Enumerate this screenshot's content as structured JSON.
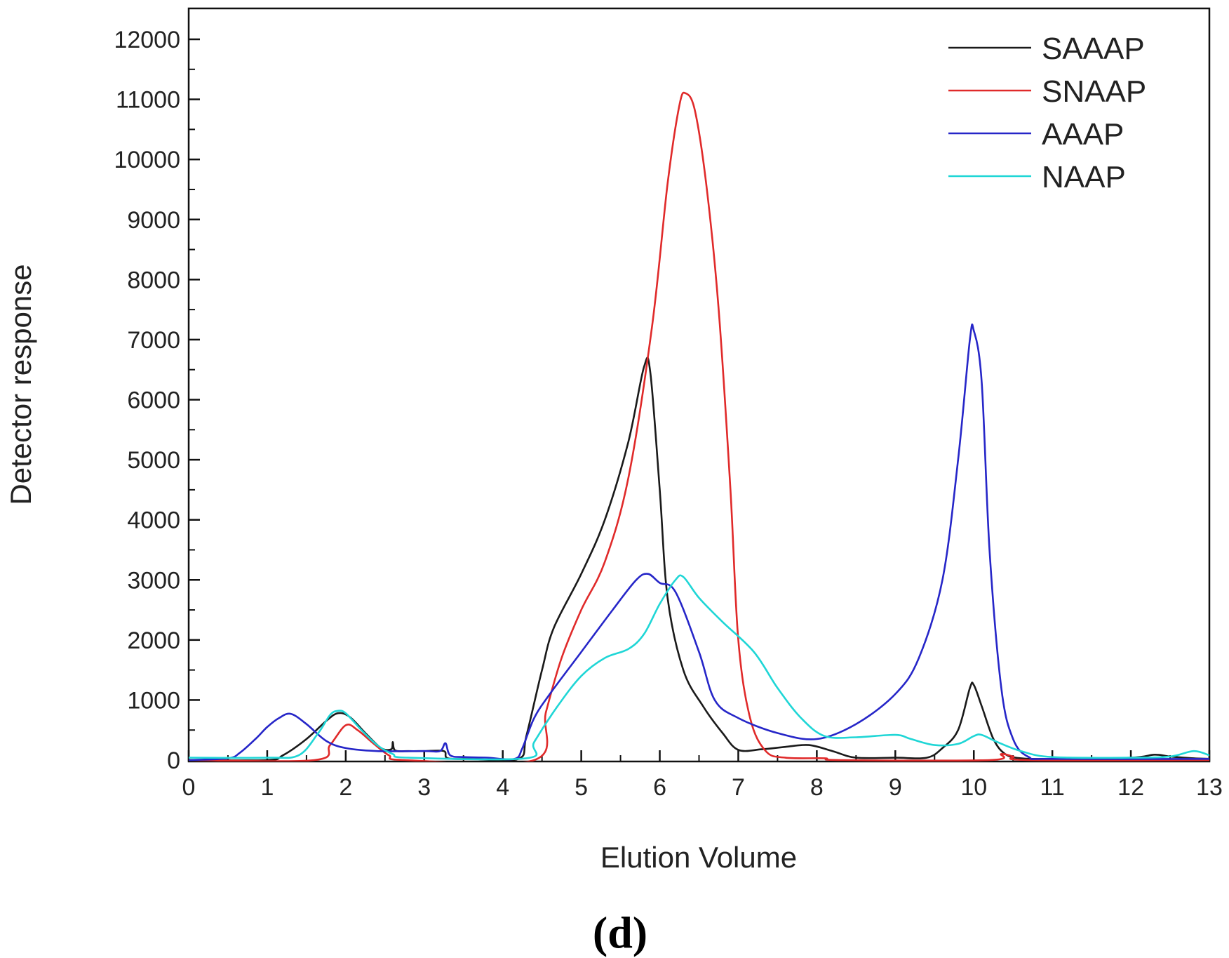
{
  "chart_data": {
    "type": "line",
    "title": "",
    "panel_label": "(d)",
    "xlabel": "Elution Volume",
    "ylabel": "Detector response",
    "xlim": [
      0,
      13
    ],
    "ylim": [
      0,
      12500
    ],
    "xticks": [
      0,
      1,
      2,
      3,
      4,
      5,
      6,
      7,
      8,
      9,
      10,
      11,
      12,
      13
    ],
    "yticks": [
      0,
      1000,
      2000,
      3000,
      4000,
      5000,
      6000,
      7000,
      8000,
      9000,
      10000,
      11000,
      12000
    ],
    "grid": false,
    "legend_position": "top-right",
    "series": [
      {
        "name": "SAAAP",
        "color": "#1a1a1a",
        "points": [
          [
            0,
            0
          ],
          [
            1,
            0
          ],
          [
            1.2,
            80
          ],
          [
            1.5,
            350
          ],
          [
            1.75,
            650
          ],
          [
            1.9,
            780
          ],
          [
            2.05,
            720
          ],
          [
            2.25,
            450
          ],
          [
            2.45,
            200
          ],
          [
            2.58,
            180
          ],
          [
            2.6,
            300
          ],
          [
            2.63,
            160
          ],
          [
            2.8,
            150
          ],
          [
            3.0,
            150
          ],
          [
            3.25,
            150
          ],
          [
            3.3,
            30
          ],
          [
            3.6,
            20
          ],
          [
            4.2,
            20
          ],
          [
            4.3,
            400
          ],
          [
            4.5,
            1500
          ],
          [
            4.65,
            2200
          ],
          [
            5.0,
            3100
          ],
          [
            5.3,
            4000
          ],
          [
            5.6,
            5300
          ],
          [
            5.8,
            6550
          ],
          [
            5.88,
            6450
          ],
          [
            6.0,
            4500
          ],
          [
            6.1,
            2700
          ],
          [
            6.3,
            1500
          ],
          [
            6.55,
            900
          ],
          [
            6.8,
            450
          ],
          [
            7.0,
            170
          ],
          [
            7.3,
            180
          ],
          [
            7.6,
            220
          ],
          [
            7.9,
            250
          ],
          [
            8.2,
            150
          ],
          [
            8.5,
            40
          ],
          [
            9.0,
            40
          ],
          [
            9.4,
            40
          ],
          [
            9.6,
            200
          ],
          [
            9.8,
            500
          ],
          [
            9.95,
            1200
          ],
          [
            10.0,
            1250
          ],
          [
            10.1,
            900
          ],
          [
            10.25,
            350
          ],
          [
            10.4,
            100
          ],
          [
            10.6,
            30
          ],
          [
            11.0,
            20
          ],
          [
            12.0,
            40
          ],
          [
            12.3,
            90
          ],
          [
            12.5,
            60
          ],
          [
            12.8,
            30
          ],
          [
            13.0,
            20
          ]
        ]
      },
      {
        "name": "SNAAP",
        "color": "#e02a2a",
        "points": [
          [
            0,
            0
          ],
          [
            1.6,
            0
          ],
          [
            1.8,
            250
          ],
          [
            2.0,
            580
          ],
          [
            2.15,
            500
          ],
          [
            2.35,
            280
          ],
          [
            2.55,
            80
          ],
          [
            2.75,
            0
          ],
          [
            4.4,
            0
          ],
          [
            4.55,
            800
          ],
          [
            4.75,
            1700
          ],
          [
            5.0,
            2500
          ],
          [
            5.3,
            3300
          ],
          [
            5.6,
            4700
          ],
          [
            5.9,
            7200
          ],
          [
            6.1,
            9600
          ],
          [
            6.25,
            10900
          ],
          [
            6.33,
            11100
          ],
          [
            6.45,
            10800
          ],
          [
            6.6,
            9500
          ],
          [
            6.75,
            7500
          ],
          [
            6.9,
            4500
          ],
          [
            7.0,
            2000
          ],
          [
            7.15,
            700
          ],
          [
            7.35,
            150
          ],
          [
            7.6,
            40
          ],
          [
            8.1,
            30
          ],
          [
            8.3,
            0
          ],
          [
            10.2,
            0
          ],
          [
            10.35,
            100
          ],
          [
            10.5,
            60
          ],
          [
            10.7,
            0
          ],
          [
            13.0,
            0
          ]
        ]
      },
      {
        "name": "AAAP",
        "color": "#2626c8",
        "points": [
          [
            0,
            0
          ],
          [
            0.5,
            30
          ],
          [
            0.65,
            120
          ],
          [
            0.85,
            350
          ],
          [
            1.0,
            550
          ],
          [
            1.15,
            700
          ],
          [
            1.3,
            770
          ],
          [
            1.5,
            600
          ],
          [
            1.75,
            320
          ],
          [
            2.0,
            200
          ],
          [
            2.4,
            150
          ],
          [
            3.0,
            150
          ],
          [
            3.2,
            150
          ],
          [
            3.27,
            280
          ],
          [
            3.33,
            80
          ],
          [
            3.5,
            50
          ],
          [
            3.8,
            40
          ],
          [
            4.15,
            20
          ],
          [
            4.25,
            200
          ],
          [
            4.4,
            700
          ],
          [
            4.6,
            1100
          ],
          [
            5.0,
            1800
          ],
          [
            5.4,
            2500
          ],
          [
            5.7,
            3000
          ],
          [
            5.85,
            3100
          ],
          [
            6.0,
            2950
          ],
          [
            6.2,
            2800
          ],
          [
            6.5,
            1800
          ],
          [
            6.7,
            1000
          ],
          [
            7.0,
            700
          ],
          [
            7.5,
            450
          ],
          [
            8.0,
            350
          ],
          [
            8.5,
            600
          ],
          [
            9.0,
            1100
          ],
          [
            9.3,
            1700
          ],
          [
            9.6,
            3000
          ],
          [
            9.8,
            5000
          ],
          [
            9.95,
            7000
          ],
          [
            10.0,
            7150
          ],
          [
            10.1,
            6300
          ],
          [
            10.2,
            3500
          ],
          [
            10.35,
            1200
          ],
          [
            10.5,
            350
          ],
          [
            10.7,
            50
          ],
          [
            11.0,
            20
          ],
          [
            13.0,
            20
          ]
        ]
      },
      {
        "name": "NAAP",
        "color": "#1fd6d6",
        "points": [
          [
            0,
            40
          ],
          [
            1.0,
            40
          ],
          [
            1.4,
            80
          ],
          [
            1.65,
            450
          ],
          [
            1.8,
            750
          ],
          [
            1.9,
            820
          ],
          [
            2.0,
            780
          ],
          [
            2.2,
            500
          ],
          [
            2.4,
            250
          ],
          [
            2.6,
            100
          ],
          [
            2.8,
            40
          ],
          [
            4.3,
            30
          ],
          [
            4.4,
            300
          ],
          [
            4.7,
            900
          ],
          [
            5.0,
            1400
          ],
          [
            5.3,
            1700
          ],
          [
            5.6,
            1850
          ],
          [
            5.8,
            2100
          ],
          [
            6.0,
            2600
          ],
          [
            6.2,
            3000
          ],
          [
            6.3,
            3050
          ],
          [
            6.5,
            2700
          ],
          [
            6.8,
            2300
          ],
          [
            7.2,
            1800
          ],
          [
            7.5,
            1200
          ],
          [
            7.8,
            700
          ],
          [
            8.1,
            400
          ],
          [
            8.5,
            380
          ],
          [
            9.0,
            420
          ],
          [
            9.2,
            350
          ],
          [
            9.5,
            250
          ],
          [
            9.8,
            270
          ],
          [
            10.0,
            400
          ],
          [
            10.1,
            420
          ],
          [
            10.3,
            300
          ],
          [
            10.6,
            150
          ],
          [
            11.0,
            50
          ],
          [
            12.0,
            40
          ],
          [
            12.5,
            60
          ],
          [
            12.8,
            150
          ],
          [
            13.0,
            80
          ]
        ]
      }
    ]
  }
}
